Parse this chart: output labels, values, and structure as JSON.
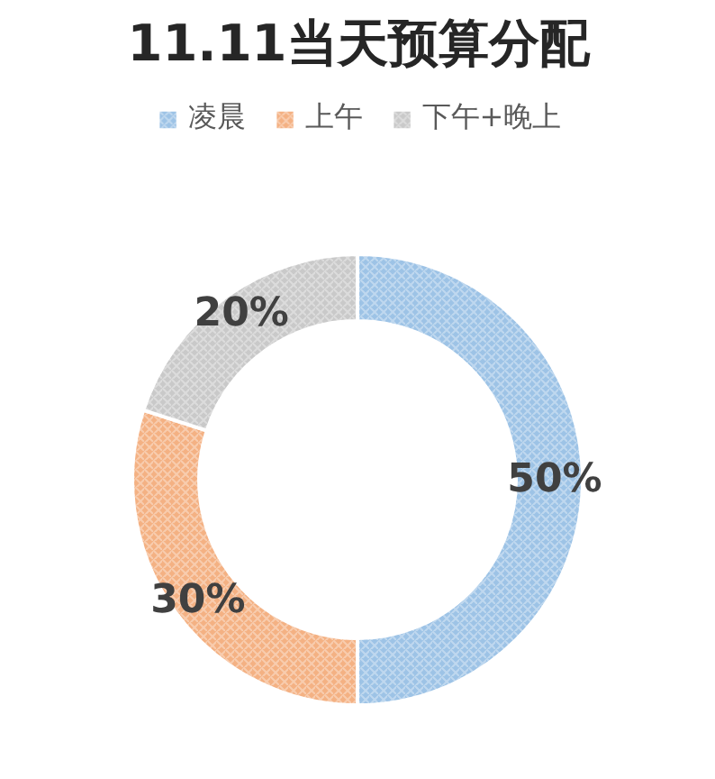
{
  "chart_data": {
    "type": "donut",
    "title": "11.11当天预算分配",
    "categories": [
      "凌晨",
      "上午",
      "下午+晚上"
    ],
    "values": [
      50,
      30,
      20
    ],
    "value_labels": [
      "50%",
      "30%",
      "20%"
    ],
    "colors": [
      "#9dc3e6",
      "#f4b183",
      "#c9c9c9"
    ],
    "legend": "top"
  }
}
